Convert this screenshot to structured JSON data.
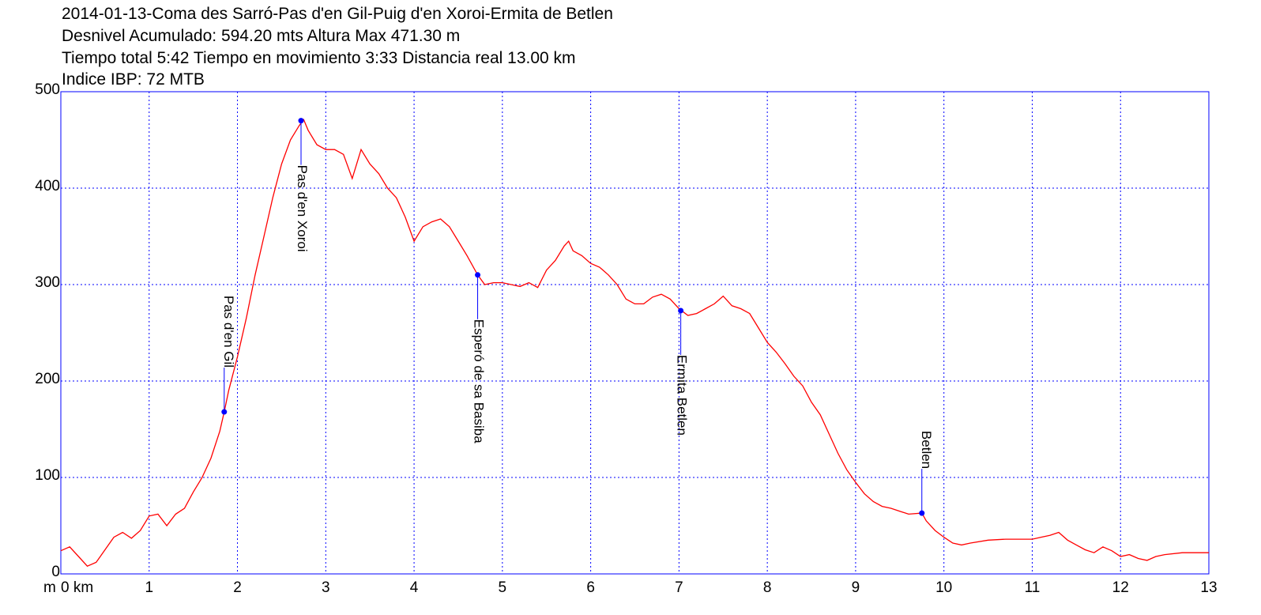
{
  "chart_data": {
    "type": "line",
    "title": "2014-01-13-Coma des Sarró-Pas d'en Gil-Puig d'en Xoroi-Ermita de Betlen",
    "subtitle_lines": [
      "Desnivel Acumulado: 594.20 mts  Altura Max 471.30 m",
      "Tiempo total 5:42 Tiempo en movimiento 3:33 Distancia real 13.00 km",
      "Indice IBP: 72 MTB"
    ],
    "y_unit": "m",
    "color": "#ff0000",
    "marker_color": "#0000ff",
    "grid": true,
    "grid_color": "#0000ff",
    "xlim": [
      0,
      13
    ],
    "xticks": [
      {
        "value": 0,
        "label": "0 km"
      },
      1,
      2,
      3,
      4,
      5,
      6,
      7,
      8,
      9,
      10,
      11,
      12,
      13
    ],
    "ylim": [
      0,
      500
    ],
    "yticks": [
      0,
      100,
      200,
      300,
      400,
      500
    ],
    "x": [
      0,
      0.1,
      0.2,
      0.3,
      0.4,
      0.5,
      0.6,
      0.7,
      0.8,
      0.9,
      1.0,
      1.1,
      1.2,
      1.3,
      1.4,
      1.5,
      1.6,
      1.7,
      1.8,
      1.85,
      1.9,
      2.0,
      2.1,
      2.2,
      2.3,
      2.4,
      2.5,
      2.6,
      2.7,
      2.75,
      2.8,
      2.9,
      3.0,
      3.1,
      3.2,
      3.3,
      3.4,
      3.5,
      3.6,
      3.7,
      3.8,
      3.9,
      4.0,
      4.1,
      4.2,
      4.3,
      4.4,
      4.5,
      4.6,
      4.72,
      4.8,
      4.9,
      5.0,
      5.1,
      5.2,
      5.3,
      5.4,
      5.5,
      5.6,
      5.7,
      5.75,
      5.8,
      5.9,
      6.0,
      6.1,
      6.2,
      6.3,
      6.4,
      6.5,
      6.6,
      6.7,
      6.8,
      6.9,
      7.0,
      7.1,
      7.2,
      7.3,
      7.4,
      7.5,
      7.6,
      7.7,
      7.8,
      7.9,
      8.0,
      8.1,
      8.2,
      8.3,
      8.4,
      8.5,
      8.6,
      8.7,
      8.8,
      8.9,
      9.0,
      9.1,
      9.2,
      9.3,
      9.4,
      9.5,
      9.6,
      9.75,
      9.8,
      9.9,
      10.0,
      10.1,
      10.2,
      10.3,
      10.5,
      10.7,
      11.0,
      11.1,
      11.2,
      11.3,
      11.4,
      11.5,
      11.6,
      11.7,
      11.8,
      11.9,
      12.0,
      12.1,
      12.2,
      12.3,
      12.4,
      12.5,
      12.7,
      13.0
    ],
    "values": [
      24,
      28,
      18,
      8,
      12,
      25,
      38,
      43,
      37,
      45,
      60,
      62,
      50,
      62,
      68,
      85,
      100,
      120,
      148,
      168,
      190,
      225,
      265,
      310,
      350,
      390,
      425,
      450,
      465,
      471,
      460,
      445,
      440,
      440,
      435,
      410,
      440,
      425,
      415,
      400,
      390,
      370,
      345,
      360,
      365,
      368,
      360,
      345,
      330,
      310,
      300,
      302,
      302,
      300,
      298,
      302,
      297,
      315,
      325,
      340,
      345,
      335,
      330,
      322,
      318,
      310,
      300,
      285,
      280,
      280,
      287,
      290,
      285,
      275,
      268,
      270,
      275,
      280,
      288,
      278,
      275,
      270,
      255,
      240,
      230,
      218,
      205,
      195,
      178,
      165,
      145,
      125,
      108,
      95,
      83,
      75,
      70,
      68,
      65,
      62,
      63,
      55,
      45,
      38,
      32,
      30,
      32,
      35,
      36,
      36,
      38,
      40,
      43,
      35,
      30,
      25,
      22,
      28,
      24,
      18,
      20,
      16,
      14,
      18,
      20,
      22,
      22
    ],
    "annotations": [
      {
        "label": "Pas d'en Gil",
        "x": 1.85,
        "y": 168
      },
      {
        "label": "Pas d'en Xoroi",
        "x": 2.72,
        "y": 470
      },
      {
        "label": "Esperó de sa Basiba",
        "x": 4.72,
        "y": 310
      },
      {
        "label": "Ermita Betlen",
        "x": 7.02,
        "y": 273
      },
      {
        "label": "Betlen",
        "x": 9.75,
        "y": 63
      }
    ]
  }
}
